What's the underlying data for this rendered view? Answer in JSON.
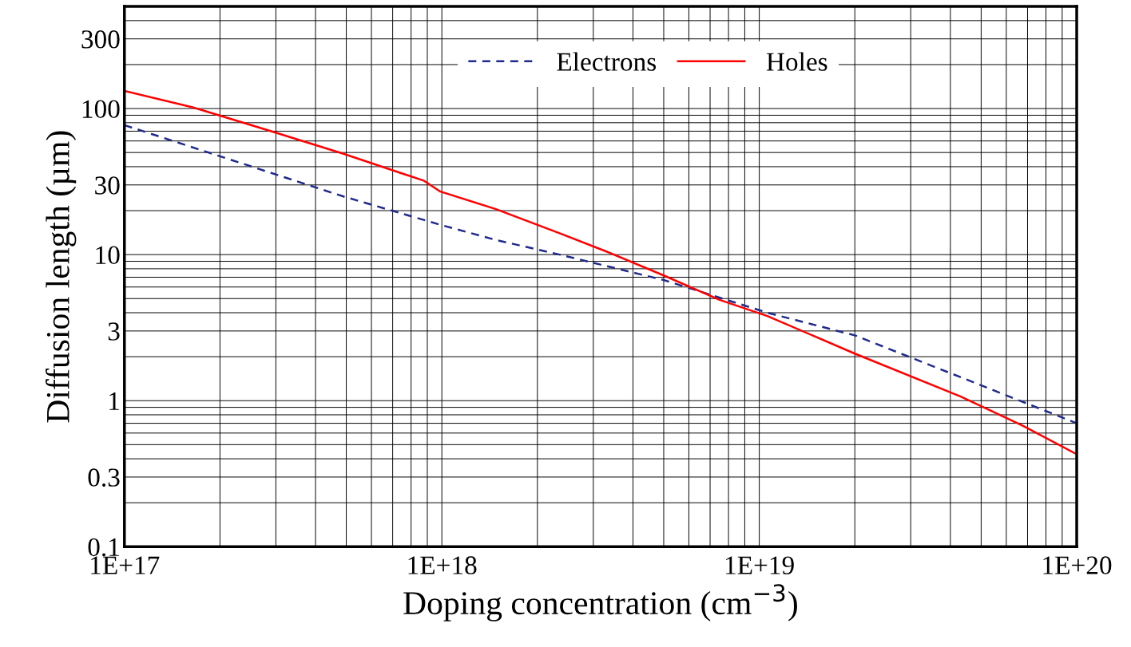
{
  "chart_data": {
    "type": "line",
    "xlabel": "Doping concentration (cm$^{−3}$)",
    "ylabel": "Diffusion length (µm)",
    "log": "xy",
    "grid": true,
    "legend": "top",
    "xlim": [
      1e+17,
      1e+20
    ],
    "xticks": [
      {
        "value": 1e+17,
        "label": "1E+17"
      },
      {
        "value": 1e+18,
        "label": "1E+18"
      },
      {
        "value": 1e+19,
        "label": "1E+19"
      },
      {
        "value": 1e+20,
        "label": "1E+20"
      }
    ],
    "ylim": [
      0.1,
      500
    ],
    "yticks": [
      0.1,
      0.3,
      1,
      3,
      10,
      30,
      100,
      300
    ],
    "series": [
      {
        "name": "Electrons",
        "color": "#1f2a8c",
        "line_style": "dashed",
        "x": [
          1e+17,
          1.95e+17,
          4.9e+17,
          9.9e+17,
          1.48e+18,
          2.35e+18,
          5e+18,
          1.06e+19,
          2e+19,
          4.3e+19,
          1e+20
        ],
        "values": [
          77,
          48,
          25,
          16,
          12.6,
          10,
          6.7,
          4,
          2.8,
          1.45,
          0.7
        ]
      },
      {
        "name": "Holes",
        "color": "#ff0000",
        "line_style": "solid",
        "x": [
          1e+17,
          1.64e+17,
          2.9e+17,
          4.9e+17,
          8.8e+17,
          9.9e+17,
          1.48e+18,
          2.35e+18,
          3.3e+18,
          5e+18,
          7.5e+18,
          1.06e+19,
          2e+19,
          4.3e+19,
          6.8e+19,
          1e+20
        ],
        "values": [
          132,
          102,
          70,
          49,
          32,
          27,
          20.5,
          14,
          10.5,
          7.2,
          4.9,
          3.8,
          2.1,
          1.07,
          0.67,
          0.43
        ]
      }
    ]
  }
}
